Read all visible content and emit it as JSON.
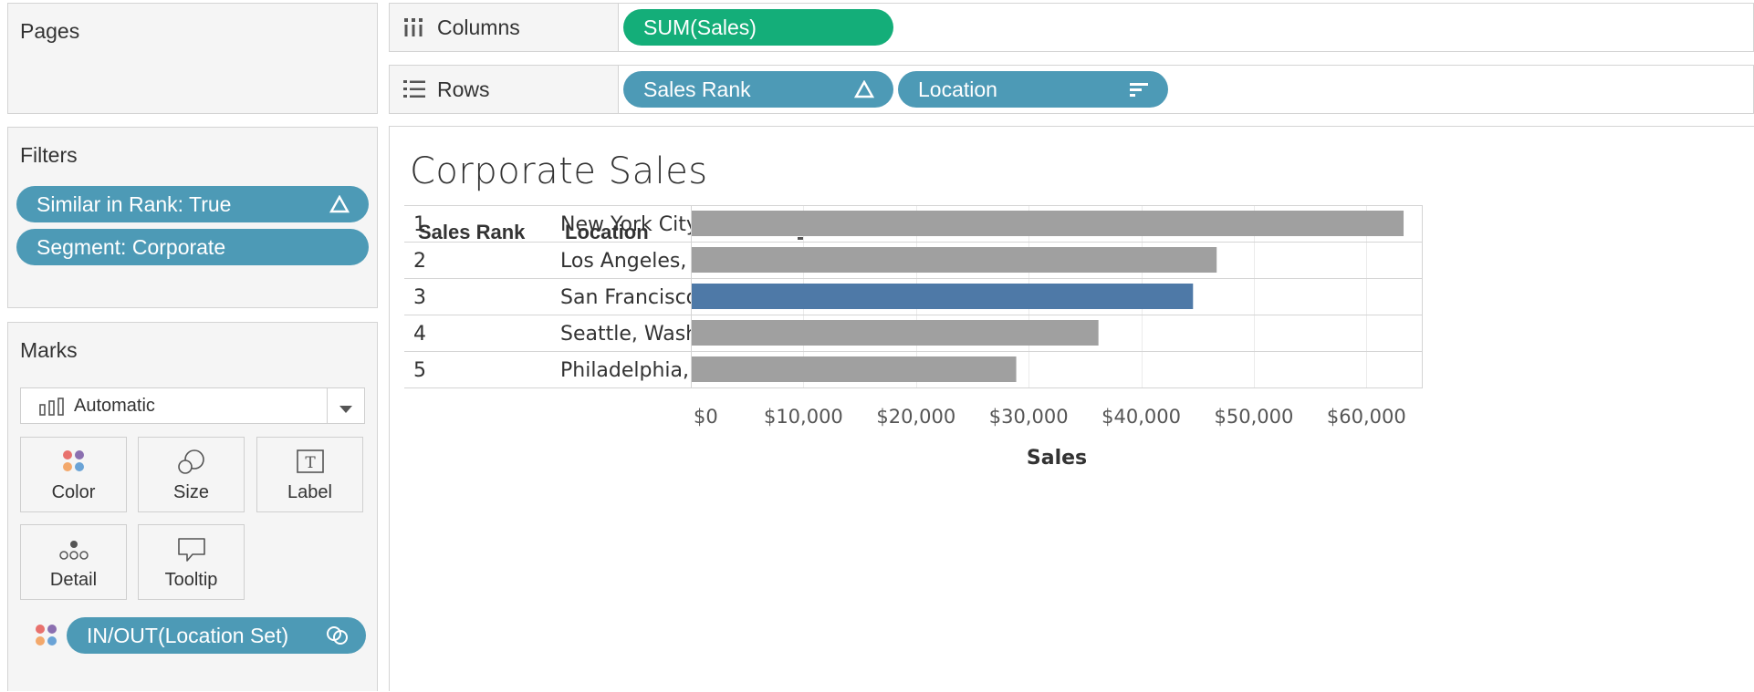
{
  "pages_panel": {
    "title": "Pages"
  },
  "filters_panel": {
    "title": "Filters",
    "pills": [
      {
        "label": "Similar in Rank: True"
      },
      {
        "label": "Segment: Corporate"
      }
    ]
  },
  "marks_panel": {
    "title": "Marks",
    "mark_type": "Automatic",
    "buttons": {
      "color": "Color",
      "size": "Size",
      "label": "Label",
      "detail": "Detail",
      "tooltip": "Tooltip"
    },
    "color_field": "IN/OUT(Location Set)"
  },
  "columns_shelf": {
    "label": "Columns",
    "pills": [
      "SUM(Sales)"
    ]
  },
  "rows_shelf": {
    "label": "Rows",
    "pills": [
      "Sales Rank",
      "Location"
    ]
  },
  "view": {
    "title": "Corporate Sales"
  },
  "colors": {
    "pill_blue": "#4d9ab6",
    "pill_green": "#14ae79",
    "bar_out": "#a0a0a0",
    "bar_in": "#4e79a7"
  },
  "chart_data": {
    "type": "bar",
    "orientation": "horizontal",
    "title": "Corporate Sales",
    "row_headers": [
      "Sales Rank",
      "Location"
    ],
    "xlabel": "Sales",
    "xlim": [
      0,
      65000
    ],
    "x_ticks": [
      0,
      10000,
      20000,
      30000,
      40000,
      50000,
      60000
    ],
    "x_tick_labels": [
      "$0",
      "$10,000",
      "$20,000",
      "$30,000",
      "$40,000",
      "$50,000",
      "$60,000"
    ],
    "grid": true,
    "rows": [
      {
        "rank": "1",
        "location": "New York City, New York",
        "value": 63300,
        "in_set": false
      },
      {
        "rank": "2",
        "location": "Los Angeles, California",
        "value": 46700,
        "in_set": false
      },
      {
        "rank": "3",
        "location": "San Francisco, California",
        "value": 44600,
        "in_set": true
      },
      {
        "rank": "4",
        "location": "Seattle, Washington",
        "value": 36200,
        "in_set": false
      },
      {
        "rank": "5",
        "location": "Philadelphia, Pennsylvania",
        "value": 28900,
        "in_set": false
      }
    ]
  }
}
